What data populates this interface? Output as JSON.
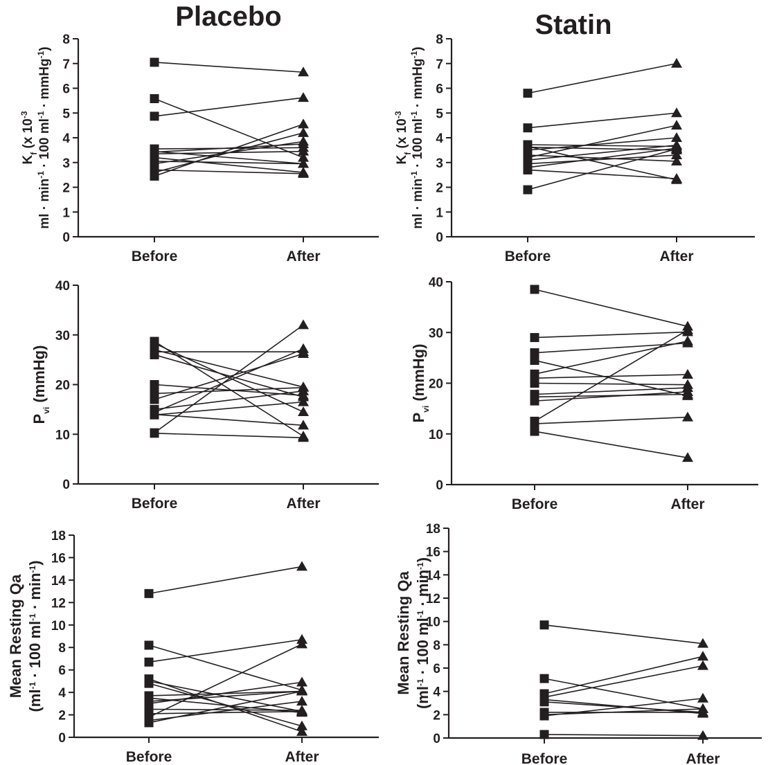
{
  "titles": {
    "left": "Placebo",
    "right": "Statin"
  },
  "chart_data": [
    {
      "id": "kf-placebo",
      "type": "line",
      "categories": [
        "Before",
        "After"
      ],
      "ylim": [
        0,
        8
      ],
      "yticks": [
        0,
        1,
        2,
        3,
        4,
        5,
        6,
        7,
        8
      ],
      "ylabel": {
        "line1": [
          [
            "K",
            ""
          ],
          [
            "f",
            "sub"
          ],
          [
            " (x 10",
            ""
          ],
          [
            "-3",
            "sup"
          ]
        ],
        "line2": [
          [
            "ml · min",
            ""
          ],
          [
            "-1",
            "sup"
          ],
          [
            " · 100 ml",
            ""
          ],
          [
            "-1",
            "sup"
          ],
          [
            " · mmHg",
            ""
          ],
          [
            "-1",
            "sup"
          ],
          [
            ")",
            ""
          ]
        ]
      },
      "pairs": [
        [
          7.05,
          6.65
        ],
        [
          5.58,
          3.2
        ],
        [
          4.87,
          5.62
        ],
        [
          3.55,
          3.6
        ],
        [
          3.45,
          2.95
        ],
        [
          3.42,
          3.75
        ],
        [
          3.35,
          3.45
        ],
        [
          3.2,
          2.6
        ],
        [
          3.05,
          2.95
        ],
        [
          2.95,
          3.85
        ],
        [
          2.7,
          2.55
        ],
        [
          2.6,
          4.2
        ],
        [
          2.45,
          4.55
        ]
      ]
    },
    {
      "id": "kf-statin",
      "type": "line",
      "categories": [
        "Before",
        "After"
      ],
      "ylim": [
        0,
        8
      ],
      "yticks": [
        0,
        1,
        2,
        3,
        4,
        5,
        6,
        7,
        8
      ],
      "ylabel": {
        "line1": [
          [
            "K",
            ""
          ],
          [
            "f",
            "sub"
          ],
          [
            " (x 10",
            ""
          ],
          [
            "-3",
            "sup"
          ]
        ],
        "line2": [
          [
            "ml · min",
            ""
          ],
          [
            "-1",
            "sup"
          ],
          [
            " · 100 ml",
            ""
          ],
          [
            "-1",
            "sup"
          ],
          [
            " · mmHg",
            ""
          ],
          [
            "-1",
            "sup"
          ],
          [
            ")",
            ""
          ]
        ]
      },
      "pairs": [
        [
          5.8,
          7.0
        ],
        [
          4.4,
          5.0
        ],
        [
          3.72,
          3.65
        ],
        [
          3.65,
          2.3
        ],
        [
          3.62,
          3.5
        ],
        [
          3.5,
          4.0
        ],
        [
          3.3,
          3.05
        ],
        [
          3.2,
          4.5
        ],
        [
          3.1,
          3.7
        ],
        [
          2.95,
          3.3
        ],
        [
          2.8,
          3.58
        ],
        [
          2.7,
          2.35
        ],
        [
          1.9,
          3.55
        ]
      ]
    },
    {
      "id": "pvi-placebo",
      "type": "line",
      "categories": [
        "Before",
        "After"
      ],
      "ylim": [
        0,
        40
      ],
      "yticks": [
        0,
        10,
        20,
        30,
        40
      ],
      "ylabel": {
        "line1": [
          [
            "P",
            ""
          ],
          [
            "vi",
            "sub"
          ],
          [
            "  (mmHg)",
            ""
          ]
        ]
      },
      "pairs": [
        [
          28.7,
          9.6
        ],
        [
          28.3,
          14.5
        ],
        [
          27.0,
          19.5
        ],
        [
          26.6,
          26.6
        ],
        [
          26.0,
          17.5
        ],
        [
          20.0,
          17.8
        ],
        [
          18.2,
          19.4
        ],
        [
          17.0,
          26.2
        ],
        [
          15.0,
          18.7
        ],
        [
          14.4,
          27.2
        ],
        [
          14.0,
          11.8
        ],
        [
          13.9,
          16.5
        ],
        [
          10.3,
          32.0
        ],
        [
          10.2,
          9.3
        ]
      ]
    },
    {
      "id": "pvi-statin",
      "type": "line",
      "categories": [
        "Before",
        "After"
      ],
      "ylim": [
        0,
        40
      ],
      "yticks": [
        0,
        10,
        20,
        30,
        40
      ],
      "ylabel": {
        "line1": [
          [
            "P",
            ""
          ],
          [
            "vi",
            "sub"
          ],
          [
            "  (mmHg)",
            ""
          ]
        ]
      },
      "pairs": [
        [
          38.5,
          31.2
        ],
        [
          29.0,
          30.1
        ],
        [
          26.0,
          27.9
        ],
        [
          24.5,
          17.5
        ],
        [
          21.8,
          28.3
        ],
        [
          21.0,
          21.7
        ],
        [
          20.0,
          19.7
        ],
        [
          17.8,
          19.1
        ],
        [
          17.3,
          17.8
        ],
        [
          16.5,
          18.3
        ],
        [
          12.5,
          30.5
        ],
        [
          12.0,
          13.3
        ],
        [
          10.5,
          5.3
        ]
      ]
    },
    {
      "id": "qa-placebo",
      "type": "line",
      "categories": [
        "Before",
        "After"
      ],
      "ylim": [
        0,
        18
      ],
      "yticks": [
        0,
        2,
        4,
        6,
        8,
        10,
        12,
        14,
        16,
        18
      ],
      "ylabel": {
        "line1": [
          [
            "Mean Resting Qa",
            ""
          ]
        ],
        "line2": [
          [
            "(ml",
            ""
          ],
          [
            "-1",
            "sup"
          ],
          [
            " · 100 ml",
            ""
          ],
          [
            "-1",
            "sup"
          ],
          [
            " · min",
            ""
          ],
          [
            "-1",
            "sup"
          ],
          [
            ")",
            ""
          ]
        ]
      },
      "pairs": [
        [
          12.8,
          15.2
        ],
        [
          8.2,
          4.2
        ],
        [
          6.7,
          8.7
        ],
        [
          5.2,
          0.5
        ],
        [
          5.0,
          2.3
        ],
        [
          4.8,
          1.0
        ],
        [
          3.7,
          4.1
        ],
        [
          3.5,
          2.2
        ],
        [
          3.2,
          4.1
        ],
        [
          3.0,
          4.9
        ],
        [
          2.5,
          2.4
        ],
        [
          2.1,
          2.3
        ],
        [
          1.8,
          8.3
        ],
        [
          1.5,
          3.2
        ],
        [
          1.3,
          4.1
        ]
      ]
    },
    {
      "id": "qa-statin",
      "type": "line",
      "categories": [
        "Before",
        "After"
      ],
      "ylim": [
        0,
        18
      ],
      "yticks": [
        0,
        2,
        4,
        6,
        8,
        10,
        12,
        14,
        16,
        18
      ],
      "ylabel": {
        "line1": [
          [
            "Mean Resting Qa",
            ""
          ]
        ],
        "line2": [
          [
            "(ml",
            ""
          ],
          [
            "-1",
            "sup"
          ],
          [
            " · 100 ml",
            ""
          ],
          [
            "-1",
            "sup"
          ],
          [
            " · min",
            ""
          ],
          [
            "-1",
            "sup"
          ],
          [
            ")",
            ""
          ]
        ]
      },
      "pairs": [
        [
          9.7,
          8.1
        ],
        [
          5.1,
          2.5
        ],
        [
          3.8,
          7.0
        ],
        [
          3.5,
          6.2
        ],
        [
          3.3,
          2.1
        ],
        [
          3.1,
          2.2
        ],
        [
          2.2,
          2.2
        ],
        [
          2.0,
          2.5
        ],
        [
          1.9,
          3.4
        ],
        [
          0.3,
          0.2
        ]
      ]
    }
  ]
}
